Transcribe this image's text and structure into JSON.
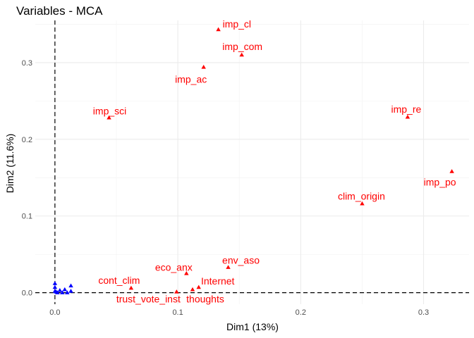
{
  "chart_data": {
    "type": "scatter",
    "title": "Variables - MCA",
    "xlabel": "Dim1 (13%)",
    "ylabel": "Dim2 (11.6%)",
    "xlim": [
      -0.016,
      0.337
    ],
    "ylim": [
      -0.015,
      0.355
    ],
    "x_ticks": [
      0.0,
      0.1,
      0.2,
      0.3
    ],
    "x_tick_labels": [
      "0.0",
      "0.1",
      "0.2",
      "0.3"
    ],
    "y_ticks": [
      0.0,
      0.1,
      0.2,
      0.3
    ],
    "y_tick_labels": [
      "0.0",
      "0.1",
      "0.2",
      "0.3"
    ],
    "grid": true,
    "reference_lines": {
      "x": 0,
      "y": 0,
      "style": "dashed"
    },
    "colors": {
      "active": "#ff0000",
      "supplementary": "#0000ff"
    },
    "series": [
      {
        "color": "#ff0000",
        "marker": "triangle",
        "points": [
          {
            "label": "imp_cl",
            "x": 0.133,
            "y": 0.343,
            "anchor": "start",
            "dx": 6,
            "dy": -3
          },
          {
            "label": "imp_com",
            "x": 0.152,
            "y": 0.31,
            "anchor": "middle",
            "dx": 1,
            "dy": -7
          },
          {
            "label": "imp_ac",
            "x": 0.121,
            "y": 0.294,
            "anchor": "middle",
            "dx": -18,
            "dy": 22
          },
          {
            "label": "imp_sci",
            "x": 0.044,
            "y": 0.228,
            "anchor": "middle",
            "dx": 1,
            "dy": -5
          },
          {
            "label": "imp_re",
            "x": 0.287,
            "y": 0.229,
            "anchor": "middle",
            "dx": -2,
            "dy": -6
          },
          {
            "label": "imp_po",
            "x": 0.323,
            "y": 0.158,
            "anchor": "middle",
            "dx": -17,
            "dy": 20
          },
          {
            "label": "clim_origin",
            "x": 0.25,
            "y": 0.116,
            "anchor": "middle",
            "dx": -1,
            "dy": -6
          },
          {
            "label": "env_aso",
            "x": 0.141,
            "y": 0.033,
            "anchor": "middle",
            "dx": 18,
            "dy": -5
          },
          {
            "label": "eco_anx",
            "x": 0.107,
            "y": 0.025,
            "anchor": "middle",
            "dx": -18,
            "dy": -4
          },
          {
            "label": "cont_clim",
            "x": 0.062,
            "y": 0.006,
            "anchor": "middle",
            "dx": -17,
            "dy": -6
          },
          {
            "label": "Internet",
            "x": 0.117,
            "y": 0.007,
            "anchor": "middle",
            "dx": 27,
            "dy": -4
          },
          {
            "label": "thoughts",
            "x": 0.112,
            "y": 0.004,
            "anchor": "middle",
            "dx": 18,
            "dy": 18
          },
          {
            "label": "trust_vote_inst",
            "x": 0.099,
            "y": 0.001,
            "anchor": "middle",
            "dx": -40,
            "dy": 15
          }
        ]
      },
      {
        "color": "#0000ff",
        "marker": "triangle",
        "points": [
          {
            "x": 0.0,
            "y": 0.012
          },
          {
            "x": 0.0,
            "y": 0.007
          },
          {
            "x": 0.0,
            "y": 0.002
          },
          {
            "x": 0.001,
            "y": 0.001
          },
          {
            "x": 0.002,
            "y": 0.0
          },
          {
            "x": 0.004,
            "y": 0.003
          },
          {
            "x": 0.006,
            "y": 0.0
          },
          {
            "x": 0.008,
            "y": 0.004
          },
          {
            "x": 0.01,
            "y": 0.0
          },
          {
            "x": 0.013,
            "y": 0.009
          },
          {
            "x": 0.013,
            "y": 0.002
          }
        ]
      }
    ]
  }
}
